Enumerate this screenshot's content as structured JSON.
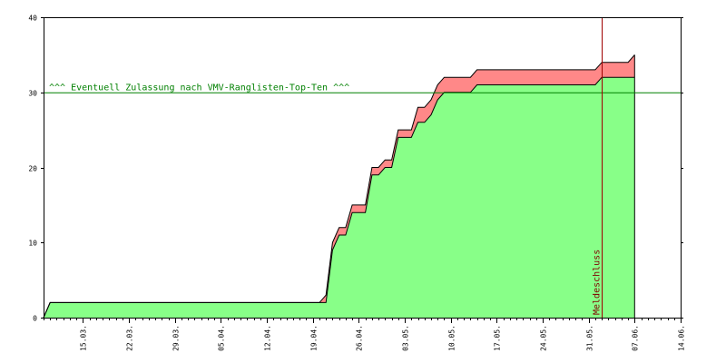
{
  "chart_data": {
    "type": "area",
    "title": "",
    "xlabel": "",
    "ylabel": "",
    "ylim": [
      0,
      40
    ],
    "yticks": [
      0,
      10,
      20,
      30,
      40
    ],
    "xlim": [
      "2010-03-09",
      "2010-06-14"
    ],
    "xticks": [
      "15.03.",
      "22.03.",
      "29.03.",
      "05.04.",
      "12.04.",
      "19.04.",
      "26.04.",
      "03.05.",
      "10.05.",
      "17.05.",
      "24.05.",
      "31.05.",
      "07.06.",
      "14.06."
    ],
    "xtick_dates": [
      "2010-03-15",
      "2010-03-22",
      "2010-03-29",
      "2010-04-05",
      "2010-04-12",
      "2010-04-19",
      "2010-04-26",
      "2010-05-03",
      "2010-05-10",
      "2010-05-17",
      "2010-05-24",
      "2010-05-31",
      "2010-06-07",
      "2010-06-14"
    ],
    "grid": false,
    "colors": {
      "lower": "#88ff88",
      "upper": "#ff8888",
      "threshold": "#008000",
      "deadline": "#a00000"
    },
    "series": [
      {
        "values": [
          [
            "2010-03-09",
            0
          ],
          [
            "2010-03-10",
            2
          ],
          [
            "2010-04-20",
            2
          ],
          [
            "2010-04-21",
            2
          ],
          [
            "2010-04-22",
            9
          ],
          [
            "2010-04-23",
            11
          ],
          [
            "2010-04-24",
            11
          ],
          [
            "2010-04-25",
            14
          ],
          [
            "2010-04-26",
            14
          ],
          [
            "2010-04-27",
            14
          ],
          [
            "2010-04-28",
            19
          ],
          [
            "2010-04-29",
            19
          ],
          [
            "2010-04-30",
            20
          ],
          [
            "2010-05-01",
            20
          ],
          [
            "2010-05-02",
            24
          ],
          [
            "2010-05-03",
            24
          ],
          [
            "2010-05-04",
            24
          ],
          [
            "2010-05-05",
            26
          ],
          [
            "2010-05-06",
            26
          ],
          [
            "2010-05-07",
            27
          ],
          [
            "2010-05-08",
            29
          ],
          [
            "2010-05-09",
            30
          ],
          [
            "2010-05-10",
            30
          ],
          [
            "2010-05-13",
            30
          ],
          [
            "2010-05-14",
            31
          ],
          [
            "2010-06-01",
            31
          ],
          [
            "2010-06-02",
            32
          ],
          [
            "2010-06-07",
            32
          ]
        ]
      },
      {
        "values": [
          [
            "2010-03-09",
            0
          ],
          [
            "2010-03-10",
            2
          ],
          [
            "2010-04-20",
            2
          ],
          [
            "2010-04-21",
            3
          ],
          [
            "2010-04-22",
            10
          ],
          [
            "2010-04-23",
            12
          ],
          [
            "2010-04-24",
            12
          ],
          [
            "2010-04-25",
            15
          ],
          [
            "2010-04-26",
            15
          ],
          [
            "2010-04-27",
            15
          ],
          [
            "2010-04-28",
            20
          ],
          [
            "2010-04-29",
            20
          ],
          [
            "2010-04-30",
            21
          ],
          [
            "2010-05-01",
            21
          ],
          [
            "2010-05-02",
            25
          ],
          [
            "2010-05-03",
            25
          ],
          [
            "2010-05-04",
            25
          ],
          [
            "2010-05-05",
            28
          ],
          [
            "2010-05-06",
            28
          ],
          [
            "2010-05-07",
            29
          ],
          [
            "2010-05-08",
            31
          ],
          [
            "2010-05-09",
            32
          ],
          [
            "2010-05-10",
            32
          ],
          [
            "2010-05-13",
            32
          ],
          [
            "2010-05-14",
            33
          ],
          [
            "2010-06-01",
            33
          ],
          [
            "2010-06-02",
            34
          ],
          [
            "2010-06-06",
            34
          ],
          [
            "2010-06-07",
            35
          ]
        ]
      }
    ],
    "annotations": [
      {
        "type": "hline",
        "y": 30,
        "text": "^^^ Eventuell Zulassung nach VMV-Ranglisten-Top-Ten ^^^"
      },
      {
        "type": "vline",
        "x": "2010-06-02",
        "text": "Meldeschluss"
      }
    ]
  }
}
